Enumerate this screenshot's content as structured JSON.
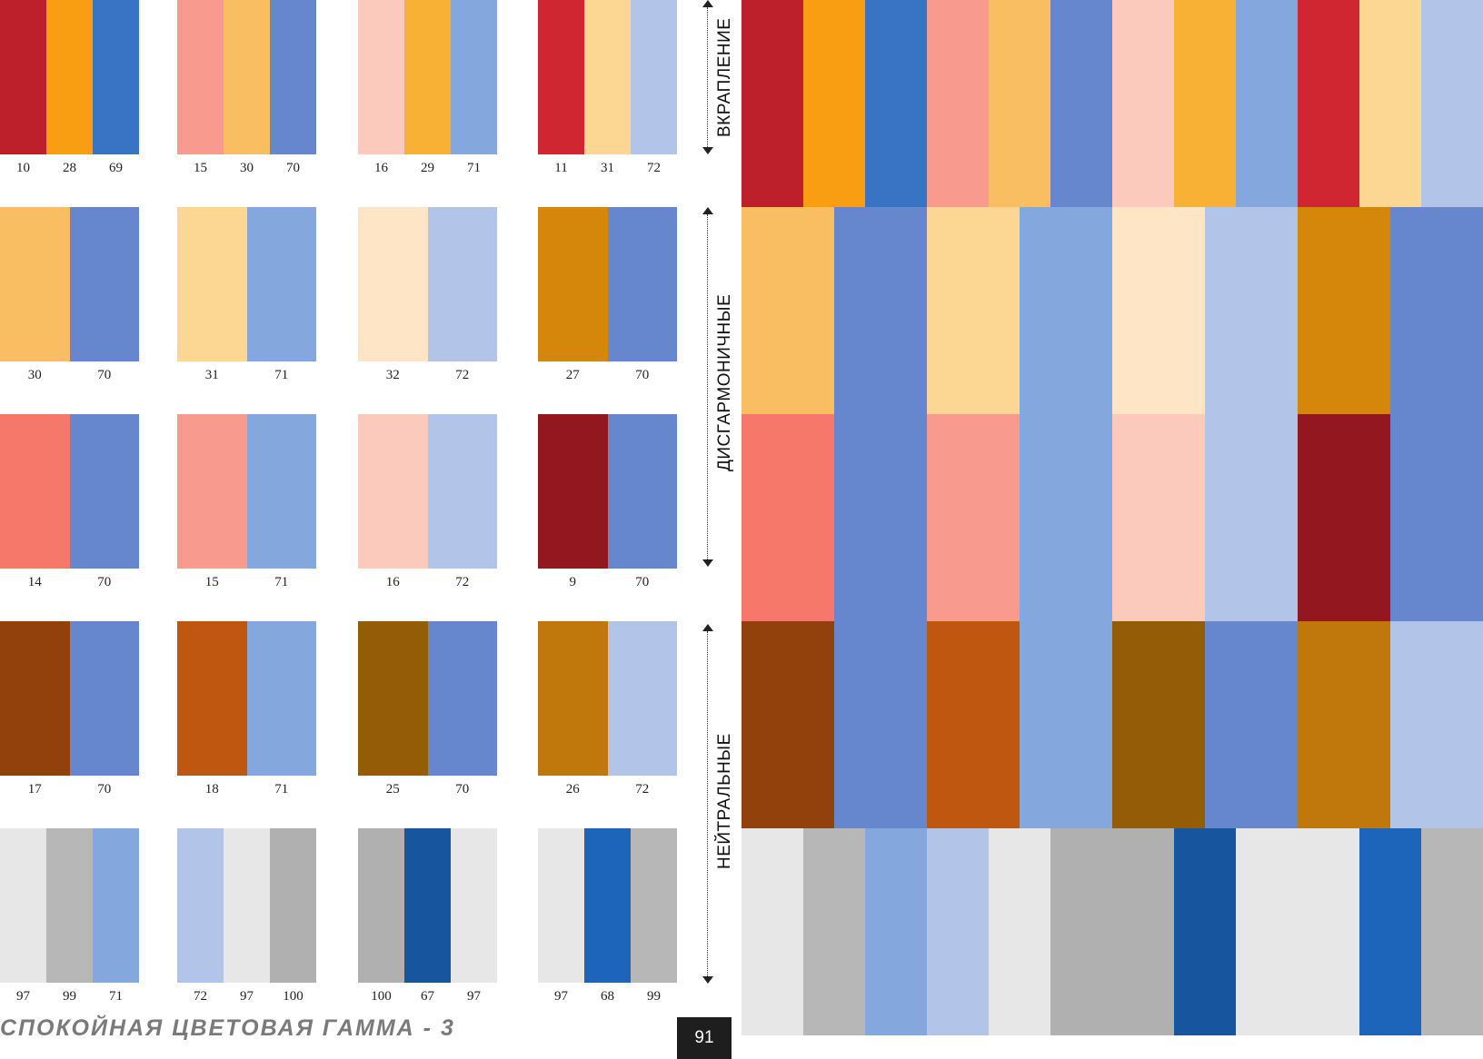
{
  "page": {
    "footer_title": "СПОКОЙНАЯ ЦВЕТОВАЯ ГАММА - 3",
    "page_number": "91"
  },
  "sections": [
    {
      "label": "ВКРАПЛЕНИЕ"
    },
    {
      "label": "ДИСГАРМОНИЧНЫЕ"
    },
    {
      "label": "НЕЙТРАЛЬНЫЕ"
    }
  ],
  "rows": [
    {
      "groups": [
        {
          "swatches": [
            {
              "code": "10",
              "color": "#BD202B"
            },
            {
              "code": "28",
              "color": "#F99D13"
            },
            {
              "code": "69",
              "color": "#3873C4"
            }
          ]
        },
        {
          "swatches": [
            {
              "code": "15",
              "color": "#F89A8E"
            },
            {
              "code": "30",
              "color": "#F9BE62"
            },
            {
              "code": "70",
              "color": "#6687CD"
            }
          ]
        },
        {
          "swatches": [
            {
              "code": "16",
              "color": "#FBCABC"
            },
            {
              "code": "29",
              "color": "#F8B135"
            },
            {
              "code": "71",
              "color": "#84A7DD"
            }
          ]
        },
        {
          "swatches": [
            {
              "code": "11",
              "color": "#D02632"
            },
            {
              "code": "31",
              "color": "#FCD793"
            },
            {
              "code": "72",
              "color": "#B2C5E8"
            }
          ]
        }
      ]
    },
    {
      "groups": [
        {
          "swatches": [
            {
              "code": "30",
              "color": "#F9BE62"
            },
            {
              "code": "70",
              "color": "#6687CD"
            }
          ]
        },
        {
          "swatches": [
            {
              "code": "31",
              "color": "#FCD793"
            },
            {
              "code": "71",
              "color": "#84A7DD"
            }
          ]
        },
        {
          "swatches": [
            {
              "code": "32",
              "color": "#FDE5C6"
            },
            {
              "code": "72",
              "color": "#B2C5E8"
            }
          ]
        },
        {
          "swatches": [
            {
              "code": "27",
              "color": "#D5870C"
            },
            {
              "code": "70",
              "color": "#6687CD"
            }
          ]
        }
      ]
    },
    {
      "groups": [
        {
          "swatches": [
            {
              "code": "14",
              "color": "#F5786B"
            },
            {
              "code": "70",
              "color": "#6687CD"
            }
          ]
        },
        {
          "swatches": [
            {
              "code": "15",
              "color": "#F89A8E"
            },
            {
              "code": "71",
              "color": "#84A7DD"
            }
          ]
        },
        {
          "swatches": [
            {
              "code": "16",
              "color": "#FBCABC"
            },
            {
              "code": "72",
              "color": "#B2C5E8"
            }
          ]
        },
        {
          "swatches": [
            {
              "code": "9",
              "color": "#92171F"
            },
            {
              "code": "70",
              "color": "#6687CD"
            }
          ]
        }
      ]
    },
    {
      "groups": [
        {
          "swatches": [
            {
              "code": "17",
              "color": "#93410C"
            },
            {
              "code": "70",
              "color": "#6687CD"
            }
          ]
        },
        {
          "swatches": [
            {
              "code": "18",
              "color": "#BF5711"
            },
            {
              "code": "71",
              "color": "#84A7DD"
            }
          ]
        },
        {
          "swatches": [
            {
              "code": "25",
              "color": "#955C08"
            },
            {
              "code": "70",
              "color": "#6687CD"
            }
          ]
        },
        {
          "swatches": [
            {
              "code": "26",
              "color": "#C0770B"
            },
            {
              "code": "72",
              "color": "#B2C5E8"
            }
          ]
        }
      ]
    },
    {
      "groups": [
        {
          "swatches": [
            {
              "code": "97",
              "color": "#E7E7E7"
            },
            {
              "code": "99",
              "color": "#B7B7B7"
            },
            {
              "code": "71",
              "color": "#84A7DD"
            }
          ]
        },
        {
          "swatches": [
            {
              "code": "72",
              "color": "#B2C5E8"
            },
            {
              "code": "97",
              "color": "#E7E7E7"
            },
            {
              "code": "100",
              "color": "#B0B0B0"
            }
          ]
        },
        {
          "swatches": [
            {
              "code": "100",
              "color": "#B0B0B0"
            },
            {
              "code": "67",
              "color": "#17569E"
            },
            {
              "code": "97",
              "color": "#E7E7E7"
            }
          ]
        },
        {
          "swatches": [
            {
              "code": "97",
              "color": "#E7E7E7"
            },
            {
              "code": "68",
              "color": "#1D65BA"
            },
            {
              "code": "99",
              "color": "#B7B7B7"
            }
          ]
        }
      ]
    }
  ]
}
